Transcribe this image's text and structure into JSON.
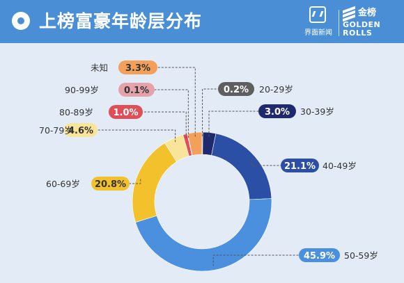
{
  "header": {
    "title": "上榜富豪年龄层分布",
    "logo_jiemian": "界面新闻",
    "logo_golden_cn": "金榜",
    "logo_golden_en_1": "GOLDEN",
    "logo_golden_en_2": "ROLLS"
  },
  "colors": {
    "header_bg": "#4a8fd6",
    "background": "#e3ecf6"
  },
  "chart_data": {
    "type": "pie",
    "title": "上榜富豪年龄层分布",
    "unit": "%",
    "categories": [
      "20-29岁",
      "30-39岁",
      "40-49岁",
      "50-59岁",
      "60-69岁",
      "70-79岁",
      "80-89岁",
      "90-99岁",
      "未知"
    ],
    "values": [
      0.2,
      3.0,
      21.1,
      45.9,
      20.8,
      4.6,
      1.0,
      0.1,
      3.3
    ],
    "labels": [
      "0.2%",
      "3.0%",
      "21.1%",
      "45.9%",
      "20.8%",
      "4.6%",
      "1.0%",
      "0.1%",
      "3.3%"
    ],
    "colors": [
      "#5f5f5f",
      "#1f2a6e",
      "#2c4fa6",
      "#4a90de",
      "#f3c12c",
      "#f9e59a",
      "#e04e58",
      "#e3a3a8",
      "#f2a05a"
    ],
    "legend": "none",
    "donut": true
  }
}
